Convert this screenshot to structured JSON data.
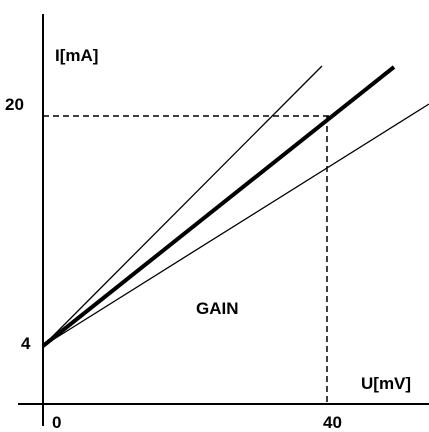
{
  "axes": {
    "y_label": "I[mA]",
    "x_label": "U[mV]",
    "y_ticks": [
      "20",
      "4"
    ],
    "x_ticks": [
      "0",
      "40"
    ]
  },
  "annotation": "GAIN",
  "colors": {
    "line": "#000000",
    "background": "#ffffff"
  }
}
